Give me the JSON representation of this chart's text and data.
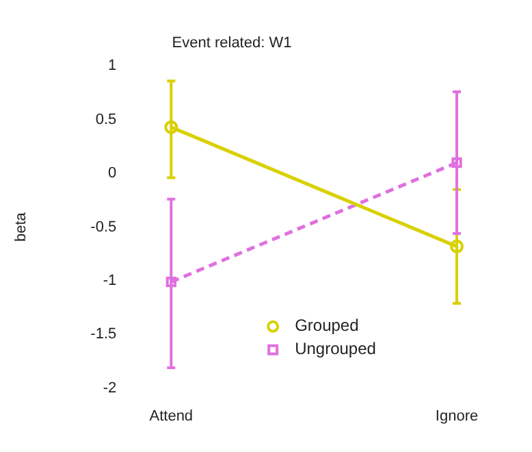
{
  "chart_data": {
    "type": "line",
    "title": "Event related: W1",
    "ylabel": "beta",
    "categories": [
      "Attend",
      "Ignore"
    ],
    "series": [
      {
        "name": "Grouped",
        "color": "#d8d000",
        "values": [
          0.43,
          -0.68
        ],
        "errors": [
          [
            -0.04,
            0.86
          ],
          [
            -1.21,
            -0.15
          ]
        ],
        "marker": "circle",
        "line_style": "solid"
      },
      {
        "name": "Ungrouped",
        "color": "#e070e0",
        "values": [
          -1.01,
          0.1
        ],
        "errors": [
          [
            -1.81,
            -0.24
          ],
          [
            -0.56,
            0.76
          ]
        ],
        "marker": "square",
        "line_style": "dashed"
      }
    ],
    "ylim": [
      -2,
      1
    ],
    "yticks": [
      -2,
      -1.5,
      -1,
      -0.5,
      0,
      0.5,
      1
    ],
    "grid": false,
    "legend": "bottom"
  }
}
